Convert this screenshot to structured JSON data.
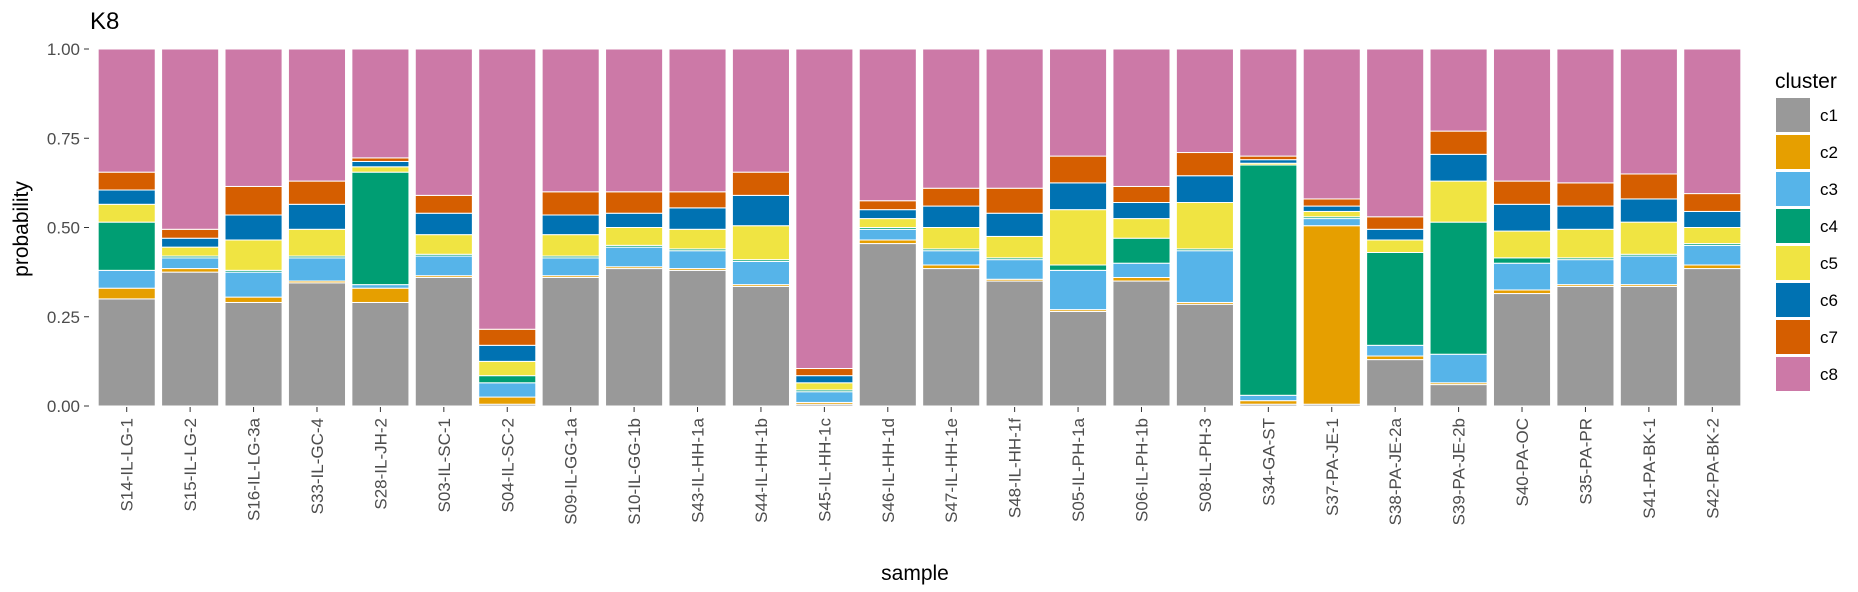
{
  "chart_data": {
    "type": "bar",
    "stacked": true,
    "title": "K8",
    "xlabel": "sample",
    "ylabel": "probability",
    "ylim": [
      0,
      1
    ],
    "yticks": [
      "0.00",
      "0.25",
      "0.50",
      "0.75",
      "1.00"
    ],
    "legend_title": "cluster",
    "legend_position": "right",
    "grid": false,
    "categories": [
      "S14-IL-LG-1",
      "S15-IL-LG-2",
      "S16-IL-LG-3a",
      "S33-IL-GC-4",
      "S28-IL-JH-2",
      "S03-IL-SC-1",
      "S04-IL-SC-2",
      "S09-IL-GG-1a",
      "S10-IL-GG-1b",
      "S43-IL-HH-1a",
      "S44-IL-HH-1b",
      "S45-IL-HH-1c",
      "S46-IL-HH-1d",
      "S47-IL-HH-1e",
      "S48-IL-HH-1f",
      "S05-IL-PH-1a",
      "S06-IL-PH-1b",
      "S08-IL-PH-3",
      "S34-GA-ST",
      "S37-PA-JE-1",
      "S38-PA-JE-2a",
      "S39-PA-JE-2b",
      "S40-PA-OC",
      "S35-PA-PR",
      "S41-PA-BK-1",
      "S42-PA-BK-2"
    ],
    "series": [
      {
        "name": "c1",
        "color": "#999999",
        "values": [
          0.3,
          0.375,
          0.29,
          0.345,
          0.29,
          0.36,
          0.005,
          0.36,
          0.385,
          0.38,
          0.335,
          0.005,
          0.455,
          0.385,
          0.35,
          0.265,
          0.35,
          0.285,
          0.005,
          0.005,
          0.13,
          0.06,
          0.315,
          0.335,
          0.335,
          0.385
        ]
      },
      {
        "name": "c2",
        "color": "#E69F00",
        "values": [
          0.03,
          0.01,
          0.015,
          0.005,
          0.04,
          0.005,
          0.02,
          0.005,
          0.005,
          0.005,
          0.005,
          0.005,
          0.01,
          0.01,
          0.005,
          0.005,
          0.01,
          0.005,
          0.01,
          0.5,
          0.01,
          0.005,
          0.01,
          0.005,
          0.005,
          0.01
        ]
      },
      {
        "name": "c3",
        "color": "#56B4E9",
        "values": [
          0.05,
          0.03,
          0.07,
          0.065,
          0.01,
          0.055,
          0.04,
          0.05,
          0.055,
          0.05,
          0.065,
          0.03,
          0.03,
          0.04,
          0.055,
          0.11,
          0.04,
          0.145,
          0.015,
          0.02,
          0.03,
          0.08,
          0.075,
          0.07,
          0.08,
          0.055
        ]
      },
      {
        "name": "c4",
        "color": "#009E73",
        "values": [
          0.135,
          0.005,
          0.005,
          0.005,
          0.315,
          0.005,
          0.02,
          0.005,
          0.005,
          0.005,
          0.005,
          0.005,
          0.005,
          0.005,
          0.005,
          0.015,
          0.07,
          0.005,
          0.645,
          0.005,
          0.26,
          0.37,
          0.015,
          0.005,
          0.005,
          0.005
        ]
      },
      {
        "name": "c5",
        "color": "#F0E442",
        "values": [
          0.05,
          0.025,
          0.085,
          0.075,
          0.015,
          0.055,
          0.04,
          0.06,
          0.05,
          0.055,
          0.095,
          0.02,
          0.025,
          0.06,
          0.06,
          0.155,
          0.055,
          0.13,
          0.005,
          0.015,
          0.035,
          0.115,
          0.075,
          0.08,
          0.09,
          0.045
        ]
      },
      {
        "name": "c6",
        "color": "#0072B2",
        "values": [
          0.04,
          0.025,
          0.07,
          0.07,
          0.015,
          0.06,
          0.045,
          0.055,
          0.04,
          0.06,
          0.085,
          0.02,
          0.025,
          0.06,
          0.065,
          0.075,
          0.045,
          0.075,
          0.01,
          0.015,
          0.03,
          0.075,
          0.075,
          0.065,
          0.065,
          0.045
        ]
      },
      {
        "name": "c7",
        "color": "#D55E00",
        "values": [
          0.05,
          0.025,
          0.08,
          0.065,
          0.01,
          0.05,
          0.045,
          0.065,
          0.06,
          0.045,
          0.065,
          0.02,
          0.025,
          0.05,
          0.07,
          0.075,
          0.045,
          0.065,
          0.01,
          0.02,
          0.035,
          0.065,
          0.065,
          0.065,
          0.07,
          0.05
        ]
      },
      {
        "name": "c8",
        "color": "#CC79A7",
        "values": [
          0.345,
          0.505,
          0.385,
          0.37,
          0.305,
          0.41,
          0.785,
          0.4,
          0.4,
          0.4,
          0.345,
          0.895,
          0.425,
          0.39,
          0.39,
          0.3,
          0.385,
          0.29,
          0.3,
          0.42,
          0.47,
          0.23,
          0.37,
          0.375,
          0.35,
          0.405
        ]
      }
    ]
  }
}
